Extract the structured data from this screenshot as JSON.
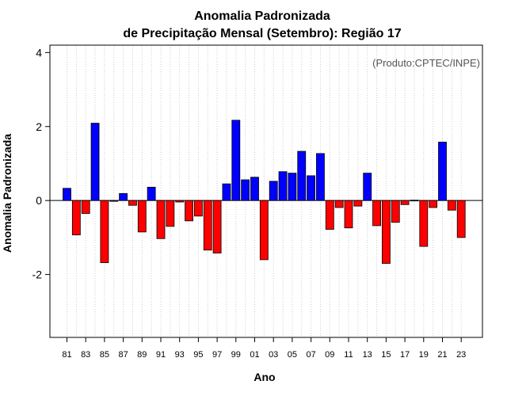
{
  "chart_data": {
    "type": "bar",
    "title_line1": "Anomalia Padronizada",
    "title_line2": "de Precipitação Mensal (Setembro): Região 17",
    "xlabel": "Ano",
    "ylabel": "Anomalia Padronizada",
    "annotation": "(Produto:CPTEC/INPE)",
    "ylim": [
      -3.7,
      4.2
    ],
    "yticks": [
      -2,
      0,
      2,
      4
    ],
    "ytick_labels": [
      "-2",
      "0",
      "2",
      "4"
    ],
    "grid": true,
    "positive_color": "#0000ff",
    "negative_color": "#ff0000",
    "categories": [
      "81",
      "82",
      "83",
      "84",
      "85",
      "86",
      "87",
      "88",
      "89",
      "90",
      "91",
      "92",
      "93",
      "94",
      "95",
      "96",
      "97",
      "98",
      "99",
      "00",
      "01",
      "02",
      "03",
      "04",
      "05",
      "06",
      "07",
      "08",
      "09",
      "10",
      "11",
      "12",
      "13",
      "14",
      "15",
      "16",
      "17",
      "18",
      "19",
      "20",
      "21",
      "22",
      "23"
    ],
    "xtick_labels": [
      "81",
      "83",
      "85",
      "87",
      "89",
      "91",
      "93",
      "95",
      "97",
      "99",
      "01",
      "03",
      "05",
      "07",
      "09",
      "11",
      "13",
      "15",
      "17",
      "19",
      "21",
      "23"
    ],
    "values": [
      0.33,
      -0.93,
      -0.35,
      2.09,
      -1.68,
      0.0,
      0.19,
      -0.13,
      -0.85,
      0.36,
      -1.03,
      -0.7,
      -0.04,
      -0.55,
      -0.42,
      -1.34,
      -1.42,
      0.45,
      2.17,
      0.56,
      0.63,
      -1.6,
      0.52,
      0.78,
      0.74,
      1.33,
      0.67,
      1.27,
      -0.78,
      -0.19,
      -0.74,
      -0.15,
      0.74,
      -0.68,
      -1.7,
      -0.59,
      -0.11,
      0.01,
      -1.24,
      -0.19,
      1.58,
      -0.26,
      -1.0
    ]
  }
}
